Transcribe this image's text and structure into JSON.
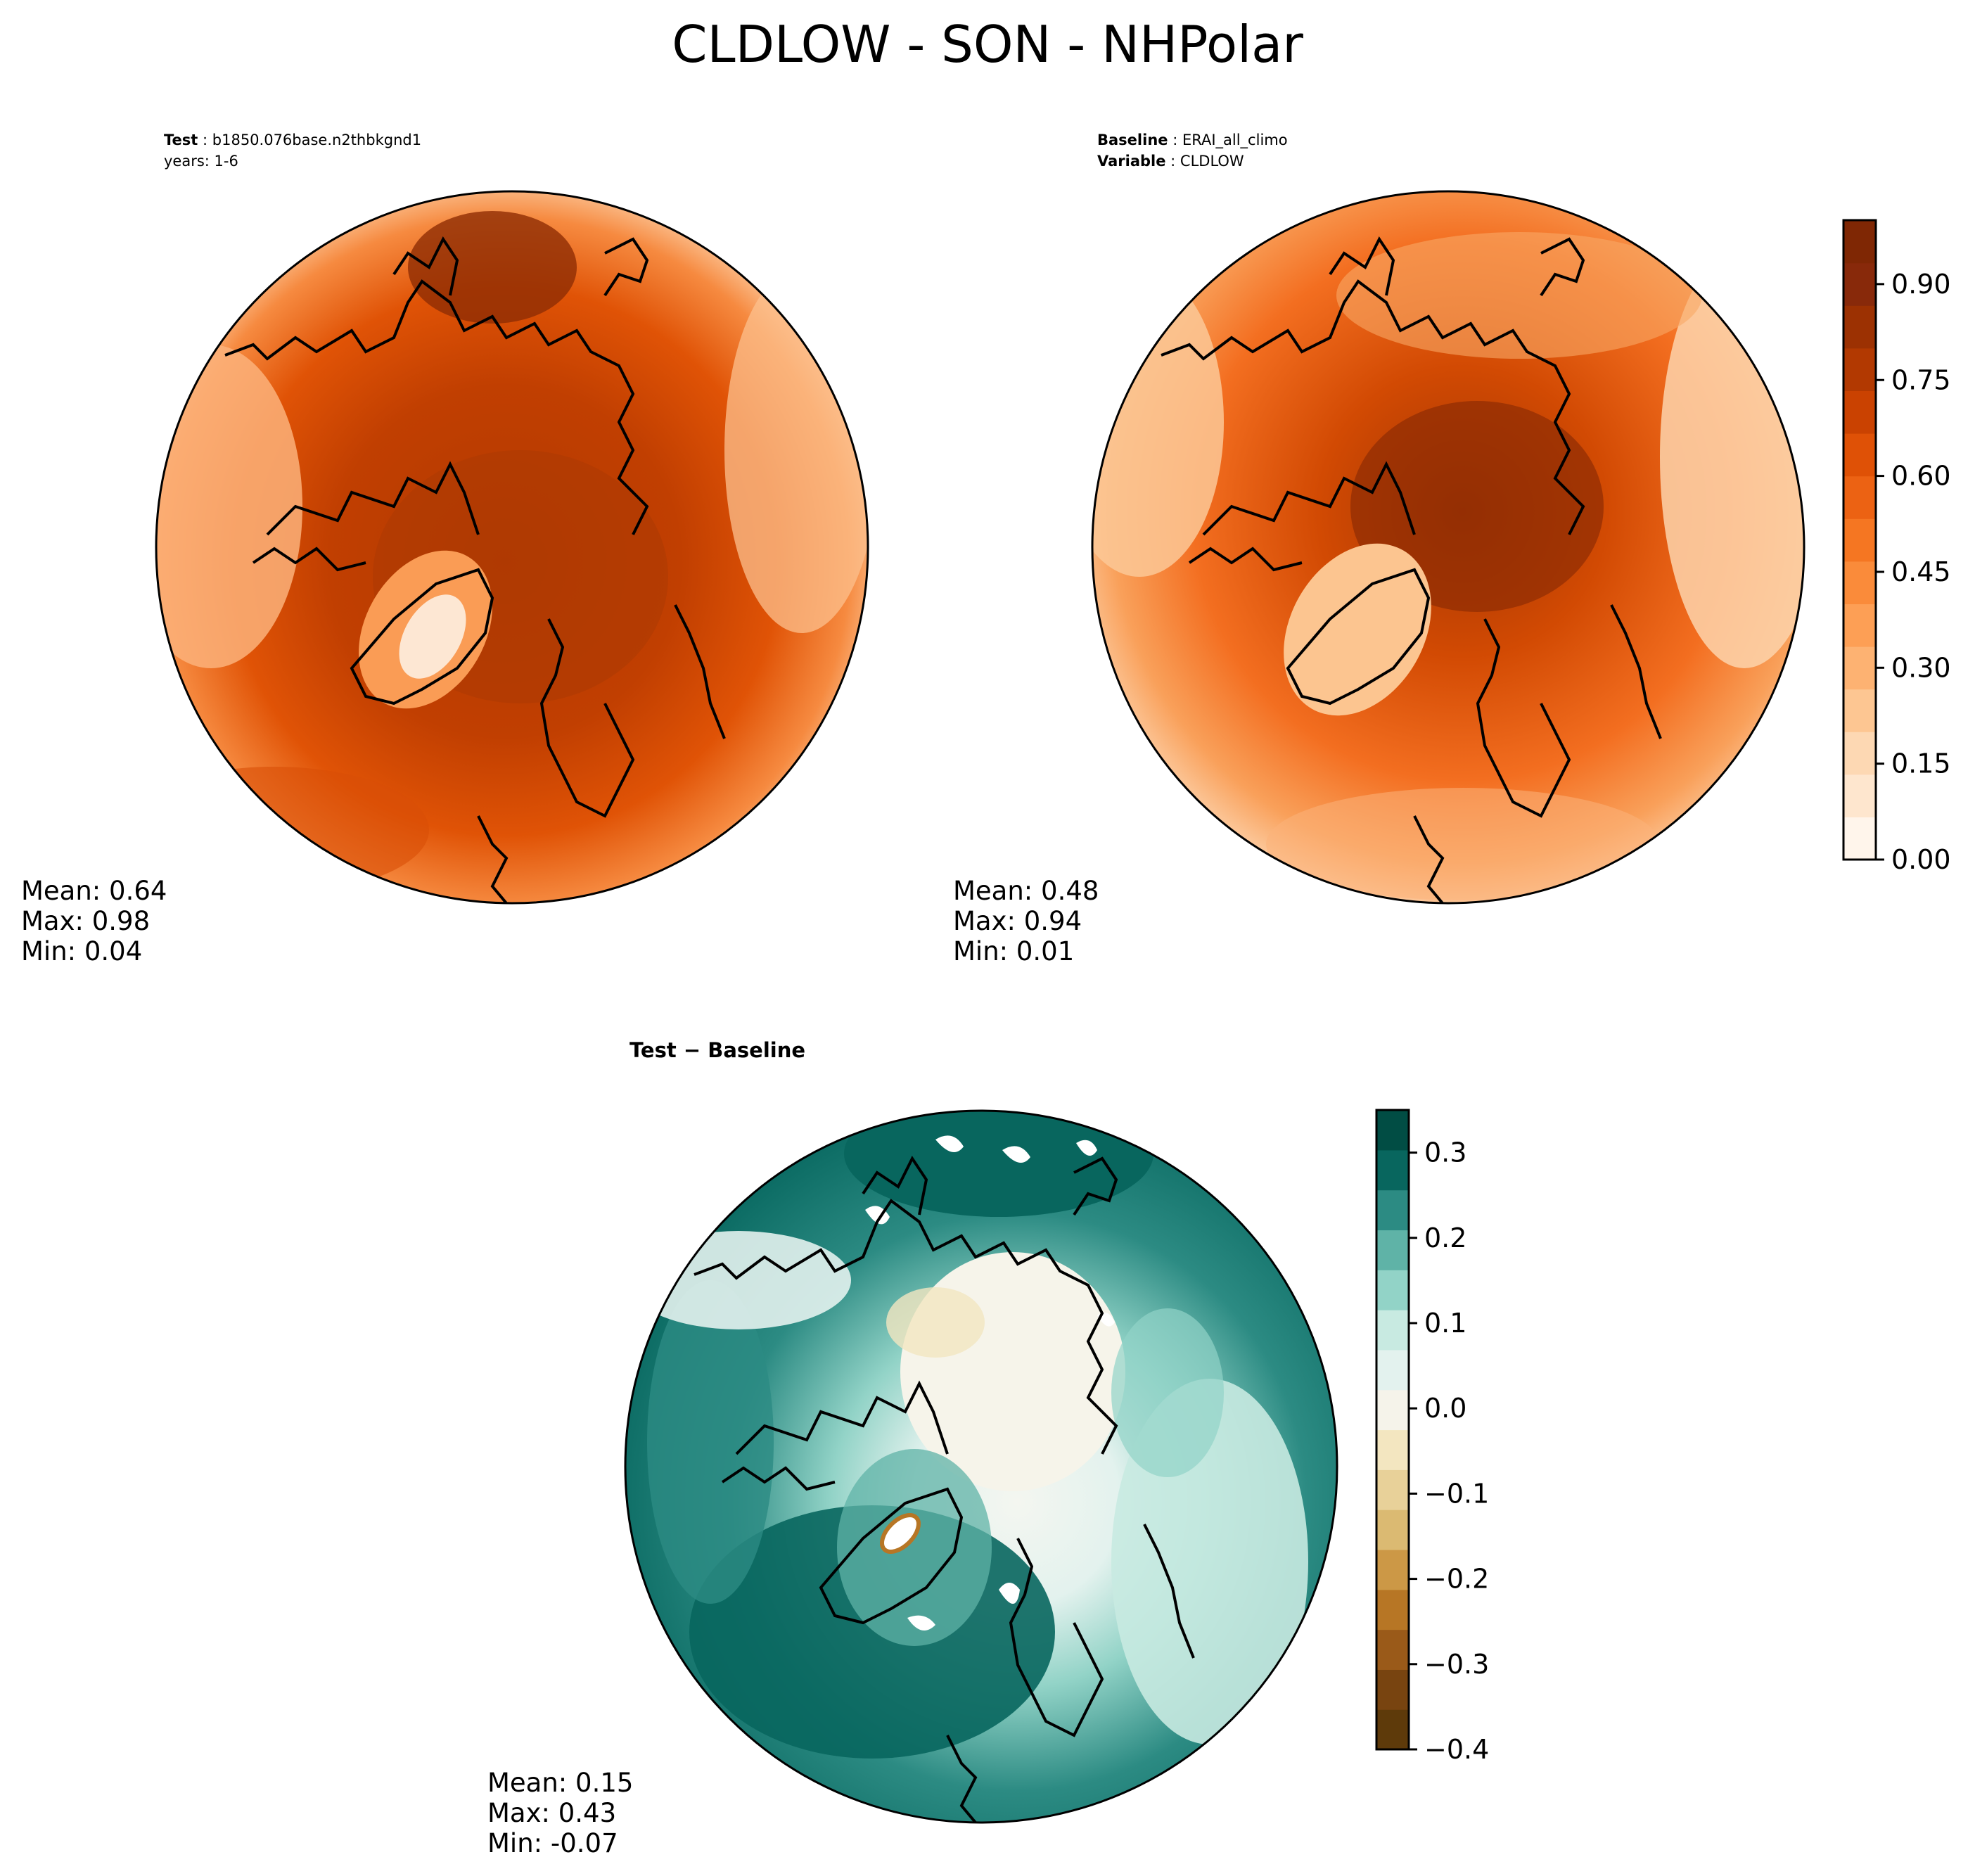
{
  "title": "CLDLOW - SON - NHPolar",
  "panels": {
    "test": {
      "label_bold": "Test",
      "label_value": "b1850.076base.n2thbkgnd1",
      "years": "years: 1-6",
      "mean": "Mean:  0.64",
      "max": "Max:  0.98",
      "min": "Min:  0.04"
    },
    "baseline": {
      "label_bold": "Baseline",
      "label_value": "ERAI_all_climo",
      "variable_bold": "Variable",
      "variable_value": "CLDLOW",
      "mean": "Mean:  0.48",
      "max": "Max:  0.94",
      "min": "Min:  0.01"
    },
    "difference": {
      "label": "Test − Baseline",
      "mean": "Mean:  0.15",
      "max": "Max:  0.43",
      "min": "Min: -0.07"
    }
  },
  "chart_data": [
    {
      "type": "heatmap",
      "subplot": "test",
      "projection": "north polar stereographic",
      "colormap": "Oranges",
      "stats": {
        "mean": 0.64,
        "max": 0.98,
        "min": 0.04
      }
    },
    {
      "type": "heatmap",
      "subplot": "baseline",
      "projection": "north polar stereographic",
      "colormap": "Oranges",
      "stats": {
        "mean": 0.48,
        "max": 0.94,
        "min": 0.01
      },
      "colorbar": {
        "range": [
          0.0,
          1.0
        ],
        "ticks": [
          0.0,
          0.15,
          0.3,
          0.45,
          0.6,
          0.75,
          0.9
        ],
        "tick_labels": [
          "0.00",
          "0.15",
          "0.30",
          "0.45",
          "0.60",
          "0.75",
          "0.90"
        ],
        "colors": [
          "#fff5eb",
          "#fee6ce",
          "#fdd8b3",
          "#fdc692",
          "#fdb272",
          "#fd9f55",
          "#fa8b3a",
          "#f57622",
          "#ec6213",
          "#df5106",
          "#ca4201",
          "#b23901",
          "#9c3102",
          "#88290a",
          "#7f2704"
        ]
      }
    },
    {
      "type": "heatmap",
      "subplot": "difference",
      "projection": "north polar stereographic",
      "colormap": "BrBG",
      "stats": {
        "mean": 0.15,
        "max": 0.43,
        "min": -0.07
      },
      "colorbar": {
        "range": [
          -0.4,
          0.35
        ],
        "ticks": [
          -0.4,
          -0.3,
          -0.2,
          -0.1,
          0.0,
          0.1,
          0.2,
          0.3
        ],
        "tick_labels": [
          "−0.4",
          "−0.3",
          "−0.2",
          "−0.1",
          "0.0",
          "0.1",
          "0.2",
          "0.3"
        ],
        "colors": [
          "#5e3a0a",
          "#784410",
          "#9a5a19",
          "#b77625",
          "#cc9846",
          "#dbba72",
          "#e8d199",
          "#f3e6c0",
          "#f5f3ea",
          "#e3f2ee",
          "#c8eae1",
          "#92d3c7",
          "#5fb3a7",
          "#2c8b83",
          "#08665e",
          "#014d44"
        ]
      }
    }
  ]
}
